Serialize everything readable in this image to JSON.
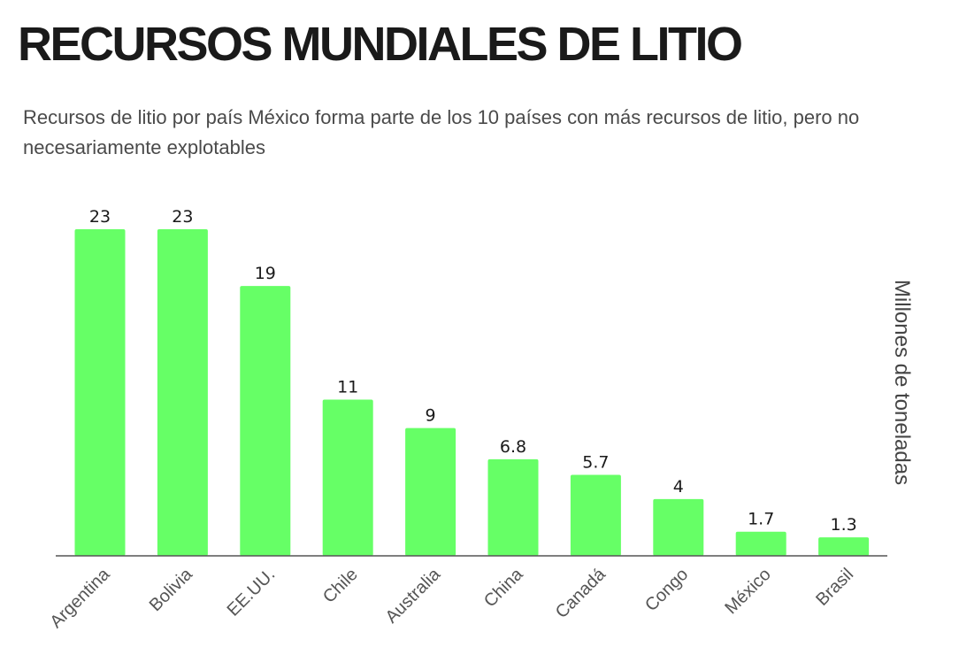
{
  "chart_data": {
    "type": "bar",
    "title": "RECURSOS MUNDIALES DE LITIO",
    "subtitle": "Recursos de litio por país México forma parte de los 10 países con más recursos de litio, pero no necesariamente explotables",
    "xlabel": "",
    "ylabel": "Millones de toneladas",
    "categories": [
      "Argentina",
      "Bolivia",
      "EE.UU.",
      "Chile",
      "Australia",
      "China",
      "Canadá",
      "Congo",
      "México",
      "Brasil"
    ],
    "values": [
      23,
      23,
      19,
      11,
      9,
      6.8,
      5.7,
      4,
      1.7,
      1.3
    ],
    "value_labels": [
      "23",
      "23",
      "19",
      "11",
      "9",
      "6.8",
      "5.7",
      "4",
      "1.7",
      "1.3"
    ],
    "ylim": [
      0,
      23
    ],
    "grid": false,
    "legend": "none",
    "bar_color": "#66ff66"
  }
}
